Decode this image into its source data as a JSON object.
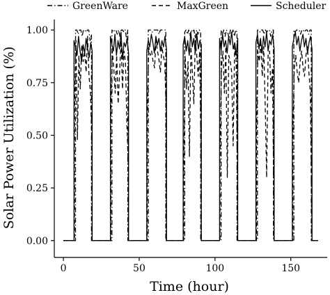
{
  "chart_data": {
    "type": "line",
    "title": "",
    "xlabel": "Time (hour)",
    "ylabel": "Solar Power Utilization (%)",
    "xlim": [
      -6,
      174
    ],
    "ylim": [
      -0.08,
      1.05
    ],
    "xticks": [
      0,
      50,
      100,
      150
    ],
    "yticks": [
      0.0,
      0.25,
      0.5,
      0.75,
      1.0
    ],
    "xtick_labels": [
      "0",
      "50",
      "100",
      "150"
    ],
    "ytick_labels": [
      "0.00",
      "0.25",
      "0.50",
      "0.75",
      "1.00"
    ],
    "grid": false,
    "legend_position": "top",
    "colors": {
      "line": "#000000",
      "axis": "#000000",
      "background": "#ffffff"
    },
    "day_windows": [
      {
        "start": 7,
        "end": 19
      },
      {
        "start": 31,
        "end": 43
      },
      {
        "start": 55,
        "end": 68
      },
      {
        "start": 79,
        "end": 91
      },
      {
        "start": 103,
        "end": 115
      },
      {
        "start": 127,
        "end": 139
      },
      {
        "start": 151,
        "end": 164
      }
    ],
    "series": [
      {
        "name": "GreenWare",
        "dash": "dashdot",
        "shift": 1.0,
        "base_values": [
          [
            1.0,
            1.0,
            0.98,
            1.0,
            1.0,
            0.97,
            1.0,
            1.0,
            0.99,
            1.0,
            1.0,
            0.95,
            0.98
          ],
          [
            1.0,
            0.99,
            1.0,
            1.0,
            0.98,
            1.0,
            0.97,
            1.0,
            1.0,
            0.99,
            1.0,
            0.96,
            1.0
          ],
          [
            1.0,
            1.0,
            1.0,
            0.99,
            1.0,
            1.0,
            1.0,
            1.0,
            0.98,
            1.0,
            1.0,
            1.0,
            1.0,
            1.0
          ],
          [
            0.99,
            1.0,
            0.98,
            1.0,
            0.97,
            1.0,
            0.99,
            1.0,
            0.96,
            1.0,
            0.98,
            1.0,
            0.99
          ],
          [
            1.0,
            0.98,
            1.0,
            0.97,
            1.0,
            0.99,
            0.96,
            1.0,
            0.98,
            1.0,
            0.97,
            1.0,
            0.99
          ],
          [
            1.0,
            1.0,
            0.99,
            1.0,
            1.0,
            0.98,
            1.0,
            0.99,
            1.0,
            1.0,
            0.97,
            1.0,
            1.0
          ],
          [
            1.0,
            0.99,
            1.0,
            1.0,
            1.0,
            0.98,
            1.0,
            1.0,
            0.99,
            1.0,
            1.0,
            0.98,
            1.0,
            1.0
          ]
        ]
      },
      {
        "name": "MaxGreen",
        "dash": "dashed",
        "shift": 0.3,
        "base_values": [
          [
            0.62,
            0.95,
            0.48,
            0.88,
            0.72,
            0.93,
            0.85,
            0.9,
            0.8,
            0.97,
            0.78,
            0.7,
            0.45
          ],
          [
            0.6,
            0.9,
            0.82,
            0.7,
            0.88,
            0.65,
            0.8,
            0.95,
            0.72,
            0.9,
            0.85,
            0.55,
            0.35
          ],
          [
            0.55,
            0.92,
            0.88,
            0.9,
            0.85,
            0.82,
            0.95,
            0.9,
            0.86,
            0.8,
            0.92,
            0.88,
            0.84,
            0.6
          ],
          [
            0.3,
            0.88,
            0.72,
            0.85,
            0.4,
            0.92,
            0.8,
            0.65,
            0.95,
            0.88,
            0.78,
            0.9,
            0.35
          ],
          [
            0.4,
            0.82,
            0.9,
            0.7,
            0.92,
            0.3,
            0.88,
            0.85,
            0.8,
            0.45,
            0.92,
            0.86,
            0.25
          ],
          [
            0.5,
            0.9,
            0.85,
            0.95,
            0.78,
            0.92,
            0.65,
            0.3,
            0.88,
            0.9,
            0.7,
            0.82,
            0.1
          ],
          [
            0.5,
            0.82,
            0.88,
            0.8,
            0.75,
            0.85,
            0.9,
            0.82,
            0.78,
            0.88,
            0.92,
            0.8,
            0.7,
            0.05
          ]
        ]
      },
      {
        "name": "Scheduler",
        "dash": "solid",
        "shift": 0.0,
        "base_values": [
          [
            0.95,
            0.92,
            0.88,
            0.97,
            0.9,
            0.85,
            0.93,
            0.89,
            0.96,
            0.91,
            0.87,
            0.94,
            0.9
          ],
          [
            0.97,
            0.93,
            0.9,
            0.98,
            0.88,
            0.95,
            0.91,
            0.99,
            0.86,
            0.94,
            0.92,
            0.96,
            0.89
          ],
          [
            0.9,
            0.95,
            0.92,
            0.98,
            0.94,
            0.89,
            0.97,
            0.93,
            0.96,
            0.9,
            0.95,
            0.92,
            0.97,
            0.91
          ],
          [
            0.93,
            0.97,
            0.9,
            0.95,
            0.88,
            0.99,
            0.92,
            0.96,
            0.89,
            0.98,
            0.91,
            0.95,
            0.93
          ],
          [
            0.96,
            0.9,
            0.98,
            0.92,
            0.95,
            0.89,
            0.97,
            0.93,
            0.99,
            0.91,
            0.94,
            0.88,
            0.96
          ],
          [
            0.94,
            0.98,
            0.91,
            0.96,
            0.89,
            0.97,
            0.92,
            0.99,
            0.9,
            0.95,
            0.93,
            0.98,
            0.91
          ],
          [
            0.92,
            0.96,
            0.99,
            0.93,
            0.97,
            0.9,
            0.95,
            0.98,
            0.92,
            0.96,
            0.89,
            0.94,
            0.97,
            0.91
          ]
        ]
      }
    ]
  }
}
